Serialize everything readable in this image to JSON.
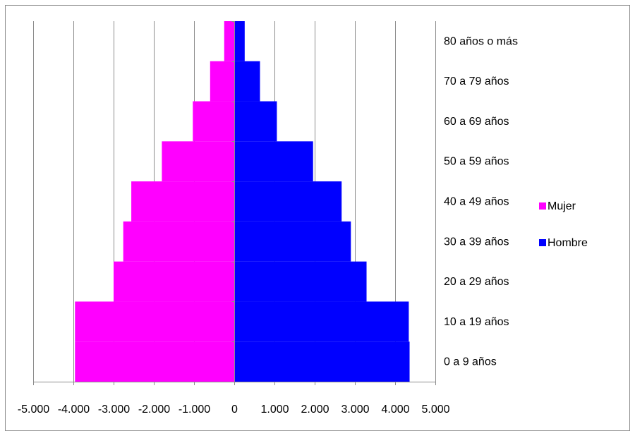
{
  "chart_data": {
    "type": "bar",
    "orientation": "horizontal",
    "layout": "population-pyramid",
    "categories": [
      "0 a 9 años",
      "10 a 19 años",
      "20 a 29 años",
      "30 a 39 años",
      "40 a 49 años",
      "50 a 59 años",
      "60 a 69 años",
      "70 a 79 años",
      "80 años o más"
    ],
    "series": [
      {
        "name": "Mujer",
        "color": "#ff00ff",
        "values": [
          -3960,
          -3960,
          -3000,
          -2760,
          -2560,
          -1800,
          -1030,
          -600,
          -250
        ]
      },
      {
        "name": "Hombre",
        "color": "#0000ff",
        "values": [
          4360,
          4340,
          3290,
          2900,
          2670,
          1960,
          1060,
          640,
          260
        ]
      }
    ],
    "xlim": [
      -5000,
      5000
    ],
    "xticks": [
      -5000,
      -4000,
      -3000,
      -2000,
      -1000,
      0,
      1000,
      2000,
      3000,
      4000,
      5000
    ],
    "xtick_labels": [
      "-5.000",
      "-4.000",
      "-3.000",
      "-2.000",
      "-1.000",
      "0",
      "1.000",
      "2.000",
      "3.000",
      "4.000",
      "5.000"
    ],
    "grid": "vertical",
    "legend": {
      "position": "right",
      "entries": [
        "Mujer",
        "Hombre"
      ]
    },
    "title": "",
    "xlabel": "",
    "ylabel": ""
  }
}
